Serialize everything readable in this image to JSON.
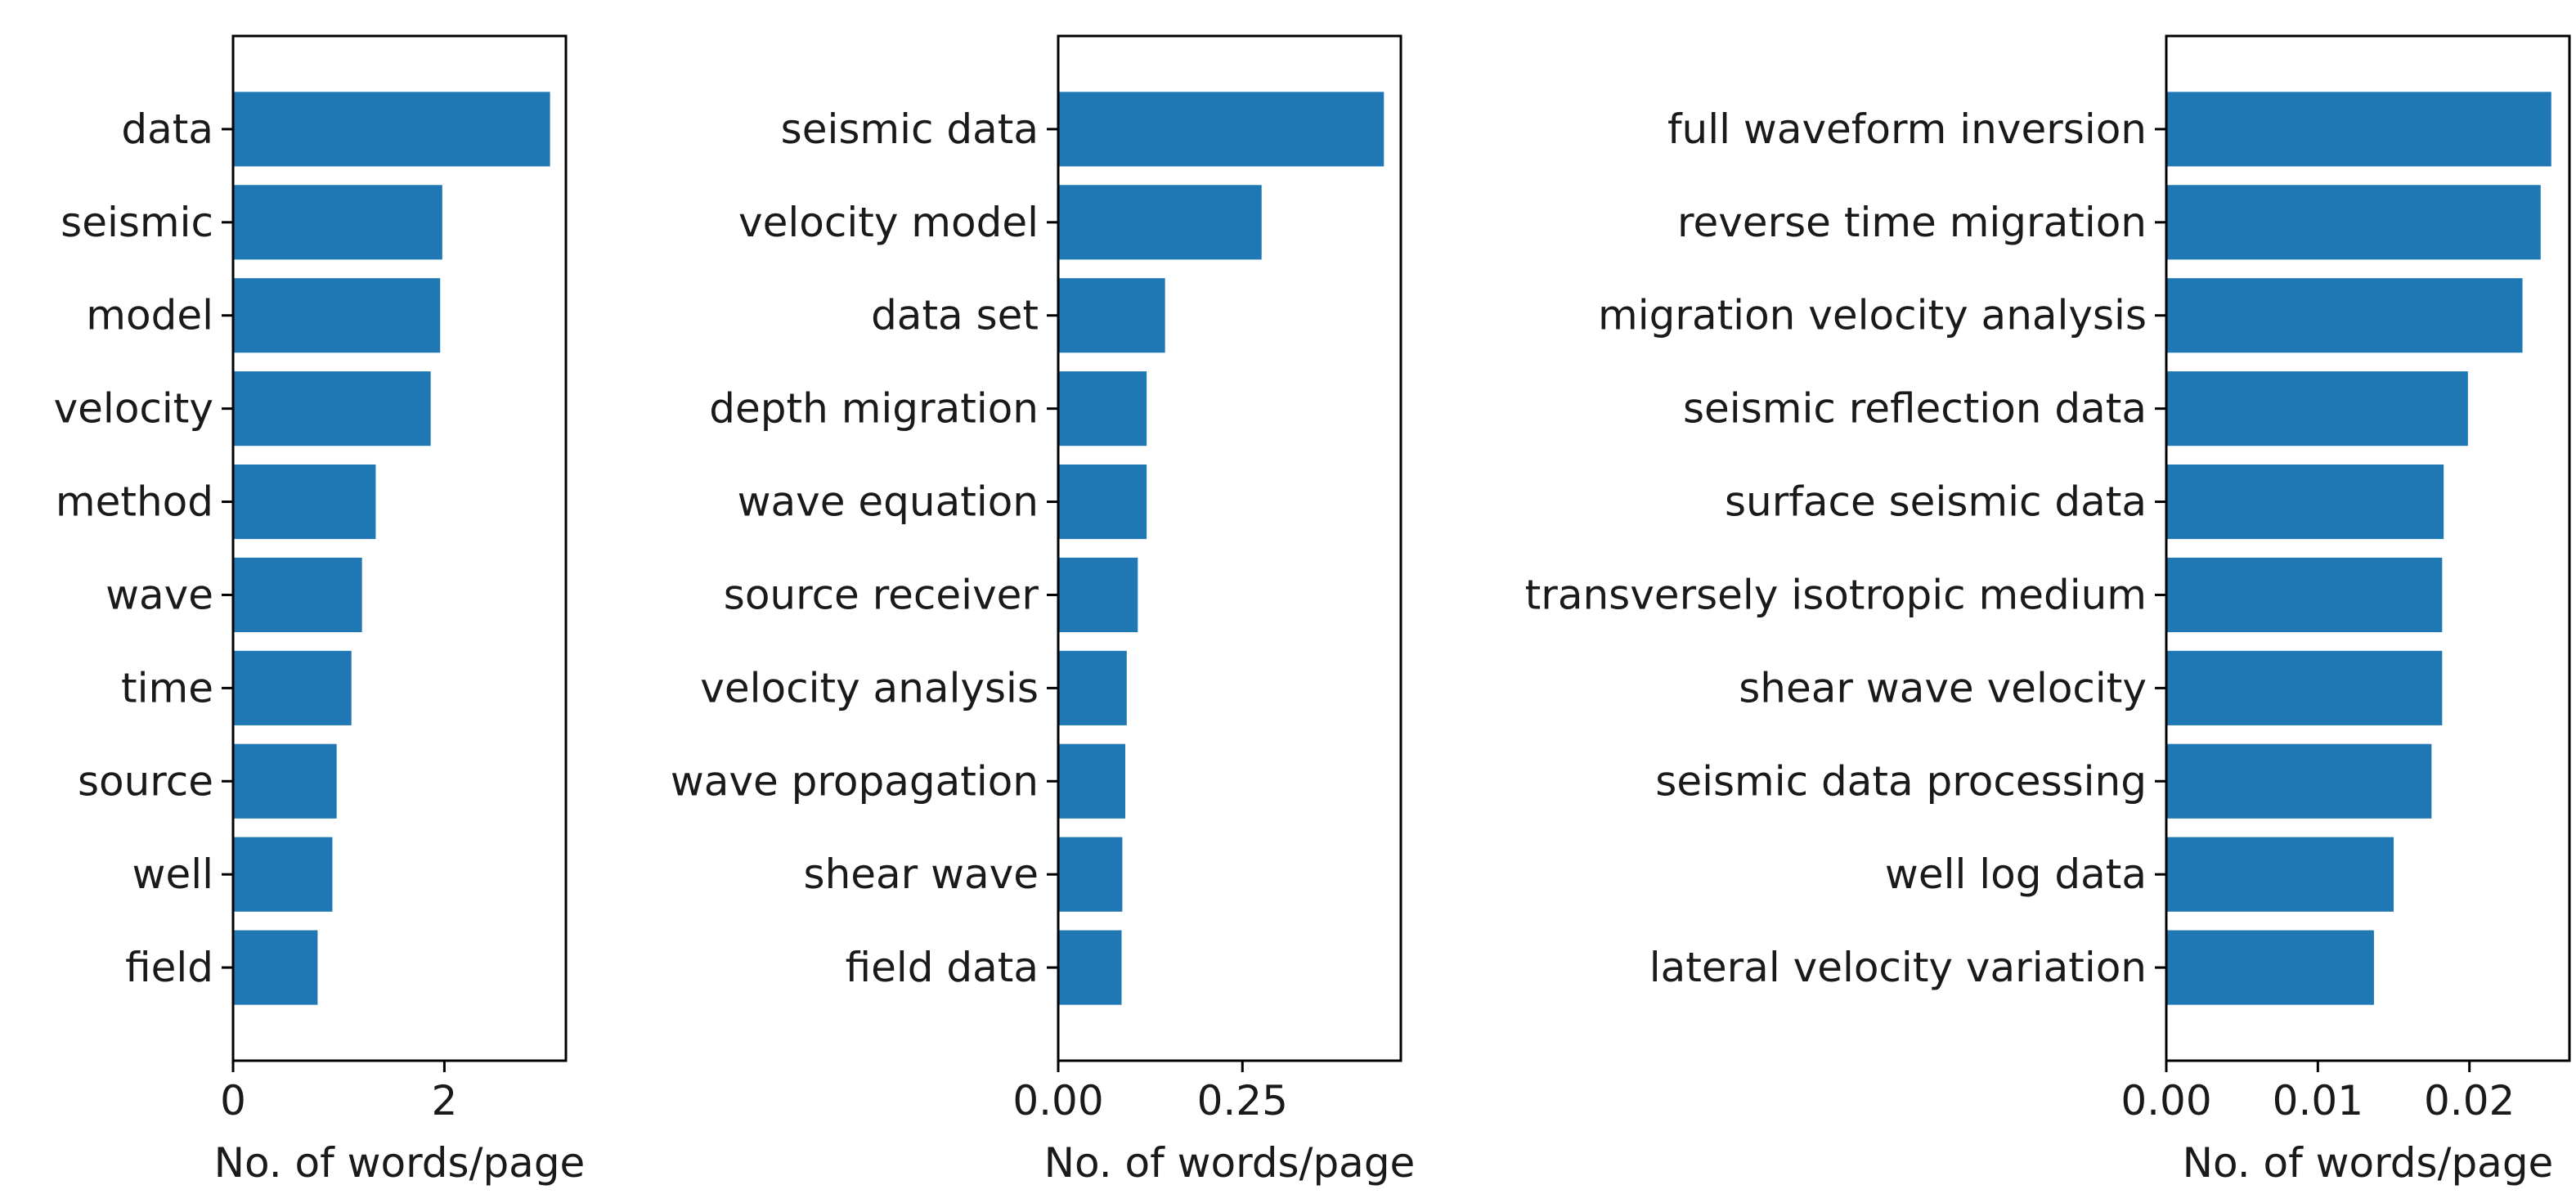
{
  "bar_color": "#1f77b4",
  "chart_data": [
    {
      "type": "bar",
      "orientation": "horizontal",
      "categories": [
        "data",
        "seismic",
        "model",
        "velocity",
        "method",
        "wave",
        "time",
        "source",
        "well",
        "field"
      ],
      "values": [
        3.0,
        1.98,
        1.96,
        1.87,
        1.35,
        1.22,
        1.12,
        0.98,
        0.94,
        0.8
      ],
      "xlabel": "No. of words/page",
      "xlim": [
        0,
        3.15
      ],
      "xticks": [
        0,
        2
      ],
      "xtick_labels": [
        "0",
        "2"
      ],
      "grid": false
    },
    {
      "type": "bar",
      "orientation": "horizontal",
      "categories": [
        "seismic data",
        "velocity model",
        "data set",
        "depth migration",
        "wave equation",
        "source receiver",
        "velocity analysis",
        "wave propagation",
        "shear wave",
        "field data"
      ],
      "values": [
        0.442,
        0.276,
        0.145,
        0.12,
        0.12,
        0.108,
        0.093,
        0.091,
        0.087,
        0.086
      ],
      "xlabel": "No. of words/page",
      "xlim": [
        0,
        0.465
      ],
      "xticks": [
        0.0,
        0.25
      ],
      "xtick_labels": [
        "0.00",
        "0.25"
      ],
      "grid": false
    },
    {
      "type": "bar",
      "orientation": "horizontal",
      "categories": [
        "full waveform inversion",
        "reverse time migration",
        "migration velocity analysis",
        "seismic reflection data",
        "surface seismic data",
        "transversely isotropic medium",
        "shear wave velocity",
        "seismic data processing",
        "well log data",
        "lateral velocity variation"
      ],
      "values": [
        0.0254,
        0.0247,
        0.0235,
        0.0199,
        0.0183,
        0.0182,
        0.0182,
        0.0175,
        0.015,
        0.0137
      ],
      "xlabel": "No. of words/page",
      "xlim": [
        0,
        0.0266
      ],
      "xticks": [
        0.0,
        0.01,
        0.02
      ],
      "xtick_labels": [
        "0.00",
        "0.01",
        "0.02"
      ],
      "grid": false
    }
  ]
}
